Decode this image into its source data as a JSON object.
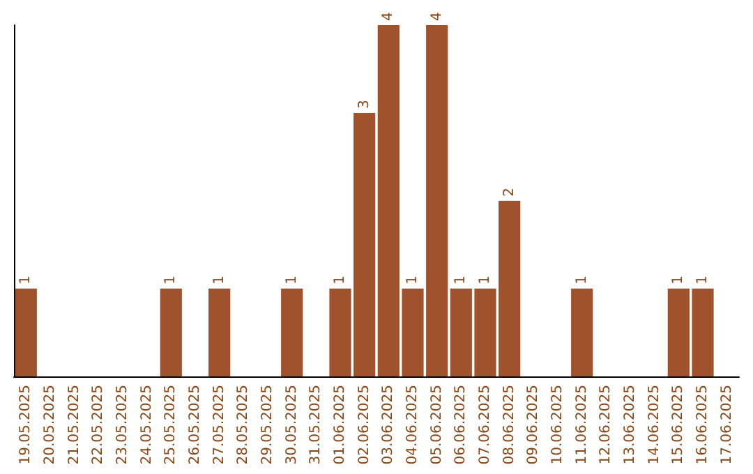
{
  "chart_data": {
    "type": "bar",
    "categories": [
      "19.05.2025",
      "20.05.2025",
      "21.05.2025",
      "22.05.2025",
      "23.05.2025",
      "24.05.2025",
      "25.05.2025",
      "26.05.2025",
      "27.05.2025",
      "28.05.2025",
      "29.05.2025",
      "30.05.2025",
      "31.05.2025",
      "01.06.2025",
      "02.06.2025",
      "03.06.2025",
      "04.06.2025",
      "05.06.2025",
      "06.06.2025",
      "07.06.2025",
      "08.06.2025",
      "09.06.2025",
      "10.06.2025",
      "11.06.2025",
      "12.06.2025",
      "13.06.2025",
      "14.06.2025",
      "15.06.2025",
      "16.06.2025",
      "17.06.2025"
    ],
    "values": [
      1,
      0,
      0,
      0,
      0,
      0,
      1,
      0,
      1,
      0,
      0,
      1,
      0,
      1,
      3,
      4,
      1,
      4,
      1,
      1,
      2,
      0,
      0,
      1,
      0,
      0,
      0,
      1,
      1,
      0
    ],
    "value_labels": [
      "1",
      null,
      null,
      null,
      null,
      null,
      "1",
      null,
      "1",
      null,
      null,
      "1",
      null,
      "1",
      "3",
      "4",
      "1",
      "4",
      "1",
      "1",
      "2",
      null,
      null,
      "1",
      null,
      null,
      null,
      "1",
      "1",
      null
    ],
    "color": "#a0522d",
    "grid": false,
    "tick_labels": "x"
  }
}
